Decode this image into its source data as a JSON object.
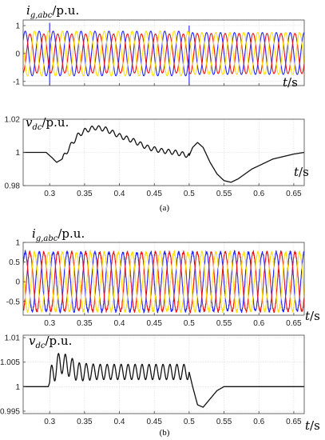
{
  "figure": {
    "captions": [
      "(a)",
      "(b)"
    ]
  },
  "chart_data": [
    {
      "panel": "a",
      "type": "line",
      "ylabel_main": "i",
      "ylabel_sub": "g,abc",
      "ylabel_unit": "/p.u.",
      "xlabel_main": "t",
      "xlabel_unit": "/s",
      "xlim": [
        0.262,
        0.665
      ],
      "ylim": [
        -1.15,
        1.2
      ],
      "yticks": [
        -1,
        0,
        1
      ],
      "grid": true,
      "series": [
        {
          "color": "#2222ff",
          "freq": 50,
          "amp_before": 0.8,
          "amp_after": 0.75,
          "phase_deg": 0,
          "spikes": [
            [
              0.3,
              -1.3
            ],
            [
              0.3,
              1.1
            ],
            [
              0.5,
              -1.3
            ],
            [
              0.5,
              1.0
            ]
          ]
        },
        {
          "color": "#ee1111",
          "freq": 50,
          "amp_before": 0.7,
          "amp_after": 0.72,
          "phase_deg": -120
        },
        {
          "color": "#ffdd00",
          "freq": 50,
          "amp_before": 0.8,
          "amp_after": 0.75,
          "phase_deg": 120
        }
      ]
    },
    {
      "panel": "a",
      "type": "line",
      "ylabel_main": "v",
      "ylabel_sub": "dc",
      "ylabel_unit": "/p.u.",
      "xlabel_main": "t",
      "xlabel_unit": "/s",
      "xlim": [
        0.262,
        0.665
      ],
      "ylim": [
        0.98,
        1.02
      ],
      "yticks": [
        0.98,
        1,
        1.02
      ],
      "xticks": [
        0.3,
        0.35,
        0.4,
        0.45,
        0.5,
        0.55,
        0.6,
        0.65
      ],
      "grid": true,
      "series": [
        {
          "color": "#111111",
          "points": [
            [
              0.262,
              1.0
            ],
            [
              0.295,
              1.0
            ],
            [
              0.303,
              0.997
            ],
            [
              0.31,
              0.994
            ],
            [
              0.318,
              0.996
            ],
            [
              0.33,
              1.004
            ],
            [
              0.34,
              1.01
            ],
            [
              0.35,
              1.013
            ],
            [
              0.365,
              1.015
            ],
            [
              0.38,
              1.014
            ],
            [
              0.4,
              1.01
            ],
            [
              0.42,
              1.007
            ],
            [
              0.44,
              1.003
            ],
            [
              0.46,
              1.001
            ],
            [
              0.48,
              1.0
            ],
            [
              0.5,
              0.998
            ],
            [
              0.505,
              1.003
            ],
            [
              0.512,
              1.006
            ],
            [
              0.52,
              1.003
            ],
            [
              0.53,
              0.994
            ],
            [
              0.54,
              0.987
            ],
            [
              0.55,
              0.983
            ],
            [
              0.56,
              0.982
            ],
            [
              0.57,
              0.984
            ],
            [
              0.59,
              0.99
            ],
            [
              0.62,
              0.996
            ],
            [
              0.65,
              0.999
            ],
            [
              0.665,
              1.0
            ]
          ],
          "ripple_start": 0.318,
          "ripple_end": 0.5,
          "ripple_amp": 0.0014,
          "ripple_freq": 100
        }
      ]
    },
    {
      "panel": "b",
      "type": "line",
      "ylabel_main": "i",
      "ylabel_sub": "g,abc",
      "ylabel_unit": "/p.u.",
      "xlabel_main": "t",
      "xlabel_unit": "/s",
      "xlim": [
        0.262,
        0.665
      ],
      "ylim": [
        -0.85,
        1.0
      ],
      "yticks": [
        -0.5,
        0,
        0.5,
        1
      ],
      "xticks": [
        0.3,
        0.35,
        0.4,
        0.45,
        0.5,
        0.55,
        0.6,
        0.65
      ],
      "grid": true,
      "series": [
        {
          "color": "#2222ff",
          "freq": 50,
          "amp_before": 0.75,
          "amp_after": 0.75,
          "phase_deg": 0,
          "noise": 0.04
        },
        {
          "color": "#ee1111",
          "freq": 50,
          "amp_before": 0.75,
          "amp_after": 0.75,
          "phase_deg": -120,
          "noise": 0.04
        },
        {
          "color": "#ffdd00",
          "freq": 50,
          "amp_before": 0.75,
          "amp_after": 0.75,
          "phase_deg": 120,
          "noise": 0.04
        }
      ]
    },
    {
      "panel": "b",
      "type": "line",
      "ylabel_main": "v",
      "ylabel_sub": "dc",
      "ylabel_unit": "/p.u.",
      "xlabel_main": "t",
      "xlabel_unit": "/s",
      "xlim": [
        0.262,
        0.665
      ],
      "ylim": [
        0.9945,
        1.0105
      ],
      "yticks": [
        0.995,
        1,
        1.005,
        1.01
      ],
      "xticks": [
        0.3,
        0.35,
        0.4,
        0.45,
        0.5,
        0.55,
        0.6,
        0.65
      ],
      "grid": true,
      "series": [
        {
          "color": "#111111",
          "points": [
            [
              0.262,
              1.0
            ],
            [
              0.298,
              1.0
            ],
            [
              0.305,
              1.003
            ],
            [
              0.315,
              1.005
            ],
            [
              0.33,
              1.004
            ],
            [
              0.34,
              1.003
            ],
            [
              0.5,
              1.003
            ],
            [
              0.505,
              1.0
            ],
            [
              0.512,
              0.9963
            ],
            [
              0.52,
              0.9958
            ],
            [
              0.53,
              0.9975
            ],
            [
              0.54,
              0.9992
            ],
            [
              0.55,
              1.0
            ],
            [
              0.665,
              1.0
            ]
          ],
          "ripple_start": 0.3,
          "ripple_end": 0.5,
          "ripple_amp": 0.0024,
          "ripple_freq": 100,
          "ripple_decay": 0.35
        }
      ]
    }
  ]
}
